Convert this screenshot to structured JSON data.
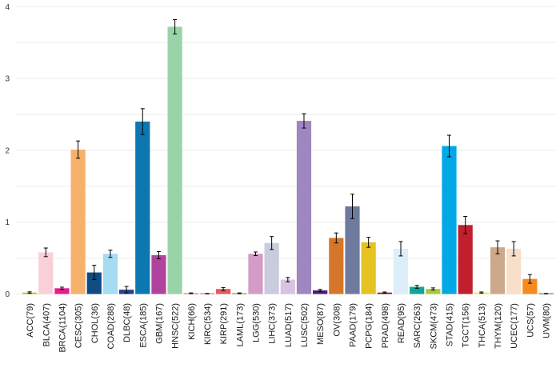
{
  "chart_data": {
    "type": "bar",
    "title": "",
    "xlabel": "",
    "ylabel": "",
    "ylim": [
      0,
      4.15
    ],
    "yticks": [
      "0",
      "1",
      "2",
      "3",
      "4"
    ],
    "grid": true,
    "categories": [
      "ACC(79)",
      "BLCA(407)",
      "BRCA(1104)",
      "CESC(305)",
      "CHOL(36)",
      "COAD(288)",
      "DLBC(48)",
      "ESCA(185)",
      "GBM(167)",
      "HNSC(522)",
      "KICH(66)",
      "KIRC(534)",
      "KIRP(291)",
      "LAML(173)",
      "LGG(530)",
      "LIHC(373)",
      "LUAD(517)",
      "LUSC(502)",
      "MESO(87)",
      "OV(308)",
      "PAAD(179)",
      "PCPG(184)",
      "PRAD(498)",
      "READ(95)",
      "SARC(263)",
      "SKCM(473)",
      "STAD(415)",
      "TGCT(156)",
      "THCA(513)",
      "THYM(120)",
      "UCEC(177)",
      "UCS(57)",
      "UVM(80)"
    ],
    "values": [
      0.02,
      0.58,
      0.08,
      2.01,
      0.3,
      0.56,
      0.06,
      2.4,
      0.54,
      3.72,
      0.01,
      0.005,
      0.07,
      0.01,
      0.56,
      0.71,
      0.2,
      2.41,
      0.05,
      0.78,
      1.22,
      0.72,
      0.02,
      0.63,
      0.1,
      0.07,
      2.06,
      0.96,
      0.02,
      0.65,
      0.63,
      0.21,
      0.005
    ],
    "errors": [
      0.01,
      0.06,
      0.015,
      0.12,
      0.1,
      0.05,
      0.045,
      0.18,
      0.05,
      0.1,
      0.005,
      0.003,
      0.02,
      0.005,
      0.025,
      0.09,
      0.03,
      0.1,
      0.015,
      0.07,
      0.17,
      0.07,
      0.008,
      0.1,
      0.02,
      0.015,
      0.15,
      0.12,
      0.008,
      0.09,
      0.1,
      0.06,
      0.003
    ],
    "colors": [
      "#C8B830",
      "#F9D0DA",
      "#E31E8C",
      "#F6B26B",
      "#0F4C81",
      "#A6DCF2",
      "#2B3F8F",
      "#0C77B0",
      "#B0449D",
      "#99D4A8",
      "#E84D5E",
      "#B0446E",
      "#E45A5A",
      "#5B7C2E",
      "#D49BC6",
      "#C8CCDD",
      "#D8C4E2",
      "#9F86C0",
      "#4B1E73",
      "#D5772A",
      "#6E7A9E",
      "#E6C222",
      "#8E1B2A",
      "#DBEEF9",
      "#0EA698",
      "#A9C73A",
      "#00A8E6",
      "#C0202E",
      "#F2E85C",
      "#CDA98C",
      "#F7DFC9",
      "#F58B1F",
      "#3F3F3F"
    ]
  }
}
